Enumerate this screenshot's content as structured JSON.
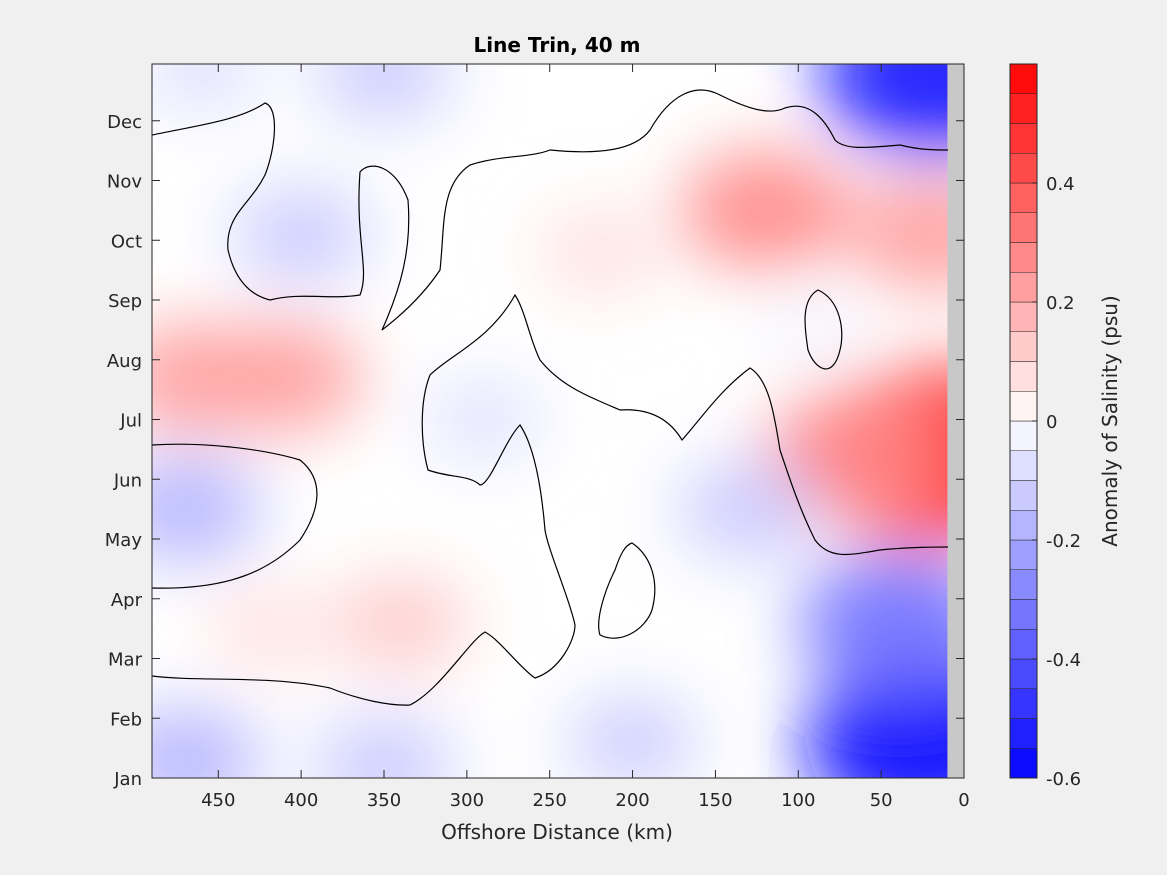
{
  "chart_data": {
    "type": "heatmap",
    "title": "Line Trin, 40 m",
    "xlabel": "Offshore Distance (km)",
    "ylabel": "",
    "x_reversed": true,
    "xlim": [
      0,
      490
    ],
    "x_ticks": [
      450,
      400,
      350,
      300,
      250,
      200,
      150,
      100,
      50,
      0
    ],
    "x_tick_labels": [
      "450",
      "400",
      "350",
      "300",
      "250",
      "200",
      "150",
      "100",
      "50",
      "0"
    ],
    "y_ticks": [
      1,
      2,
      3,
      4,
      5,
      6,
      7,
      8,
      9,
      10,
      11,
      12
    ],
    "y_tick_labels": [
      "Jan",
      "Feb",
      "Mar",
      "Apr",
      "May",
      "Jun",
      "Jul",
      "Aug",
      "Sep",
      "Oct",
      "Nov",
      "Dec"
    ],
    "ylim": [
      1,
      12.95
    ],
    "no_data_x_range": [
      0,
      10
    ],
    "colorbar": {
      "label": "Anomaly of Salinity (psu)",
      "range": [
        -0.6,
        0.6
      ],
      "step": 0.05,
      "ticks": [
        -0.6,
        -0.4,
        -0.2,
        0,
        0.2,
        0.4
      ],
      "tick_labels": [
        "-0.6",
        "-0.4",
        "-0.2",
        "0",
        "0.2",
        "0.4"
      ]
    },
    "contour_level": 0,
    "anomaly_centers": [
      {
        "x": 465,
        "y": 7.7,
        "value": 0.2
      },
      {
        "x": 410,
        "y": 7.7,
        "value": 0.2
      },
      {
        "x": 470,
        "y": 5.5,
        "value": -0.18
      },
      {
        "x": 400,
        "y": 10.1,
        "value": -0.13
      },
      {
        "x": 350,
        "y": 12.8,
        "value": -0.13
      },
      {
        "x": 460,
        "y": 12.85,
        "value": -0.08
      },
      {
        "x": 120,
        "y": 10.5,
        "value": 0.25
      },
      {
        "x": 220,
        "y": 9.8,
        "value": 0.08
      },
      {
        "x": 20,
        "y": 10.1,
        "value": 0.22
      },
      {
        "x": 20,
        "y": 6.4,
        "value": 0.55
      },
      {
        "x": 65,
        "y": 6.4,
        "value": 0.3
      },
      {
        "x": 90,
        "y": 8.5,
        "value": -0.02
      },
      {
        "x": 420,
        "y": 3.5,
        "value": 0.06
      },
      {
        "x": 340,
        "y": 3.6,
        "value": 0.12
      },
      {
        "x": 470,
        "y": 1.3,
        "value": -0.18
      },
      {
        "x": 350,
        "y": 1.2,
        "value": -0.15
      },
      {
        "x": 200,
        "y": 1.6,
        "value": -0.1
      },
      {
        "x": 20,
        "y": 1.6,
        "value": -0.55
      },
      {
        "x": 40,
        "y": 3.6,
        "value": -0.35
      },
      {
        "x": 130,
        "y": 5.5,
        "value": -0.15
      },
      {
        "x": 15,
        "y": 12.8,
        "value": -0.5
      },
      {
        "x": 290,
        "y": 7.0,
        "value": -0.05
      }
    ]
  }
}
